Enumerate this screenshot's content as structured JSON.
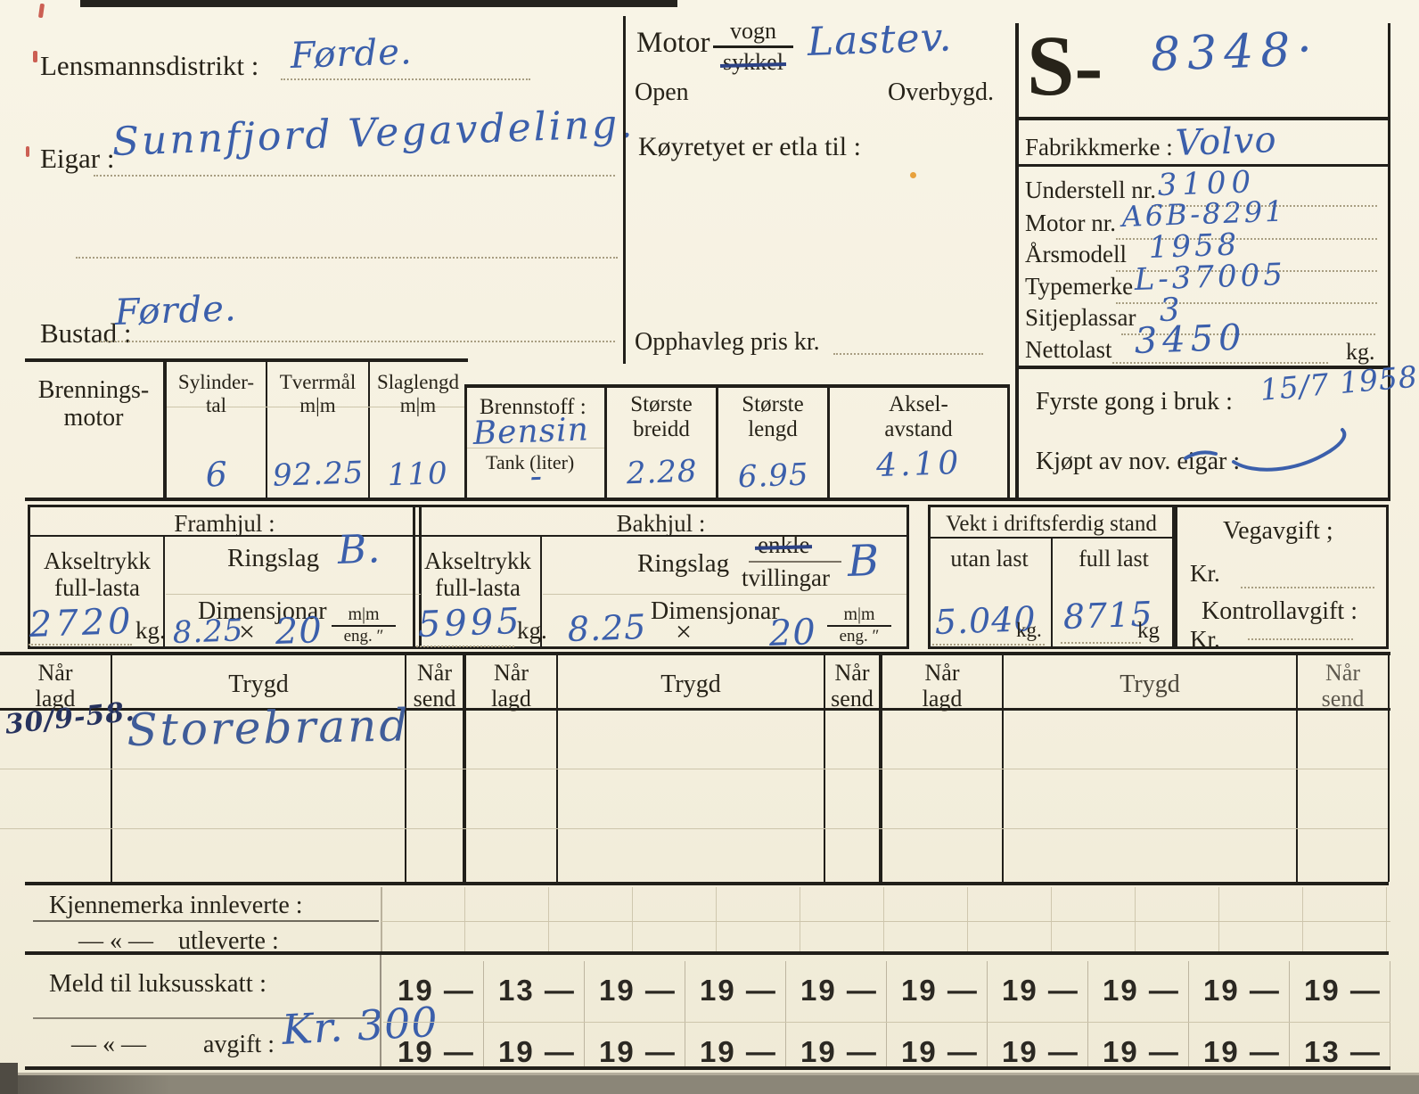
{
  "registration": {
    "district_label": "Lensmannsdistrikt :",
    "district_value": "Førde.",
    "owner_label": "Eigar :",
    "owner_value": "Sunnfjord Vegavdeling.",
    "residence_label": "Bustad :",
    "residence_value": "Førde."
  },
  "type_block": {
    "motor_label": "Motor",
    "vogn_label": "vogn",
    "sykkel_label": "sykkel",
    "vehicle_kind": "Lastev.",
    "open_label": "Open",
    "overbygd_label": "Overbygd.",
    "purpose_label": "Køyretyet er etla til :",
    "price_label": "Opphavleg pris kr."
  },
  "id_panel": {
    "series": "S-",
    "number": "8348·",
    "fabrikkmerke_label": "Fabrikkmerke :",
    "fabrikkmerke_value": "Volvo",
    "understell_label": "Understell nr.",
    "understell_value": "3100",
    "motornr_label": "Motor nr.",
    "motornr_value": "A6B-8291",
    "arsmodell_label": "Årsmodell",
    "arsmodell_value": "1958",
    "typemerke_label": "Typemerke",
    "typemerke_value": "L-37005",
    "sitjeplassar_label": "Sitjeplassar",
    "sitjeplassar_value": "3",
    "nettolast_label": "Nettolast",
    "nettolast_value": "3450",
    "nettolast_unit": "kg."
  },
  "engine": {
    "title_top": "Brennings-",
    "title_bottom": "motor",
    "syl_label_top": "Sylinder-",
    "syl_label_bottom": "tal",
    "syl_value": "6",
    "tver_label_top": "Tverrmål",
    "tver_label_bottom": "m|m",
    "tver_value": "92.25",
    "slag_label_top": "Slaglengd",
    "slag_label_bottom": "m|m",
    "slag_value": "110",
    "fuel_label": "Brennstoff :",
    "fuel_value": "Bensin",
    "tank_label": "Tank (liter)",
    "tank_value": "-",
    "breidd_label_top": "Største",
    "breidd_label_bottom": "breidd",
    "breidd_value": "2.28",
    "lengd_label_top": "Største",
    "lengd_label_bottom": "lengd",
    "lengd_value": "6.95",
    "aksel_label_top": "Aksel-",
    "aksel_label_bottom": "avstand",
    "aksel_value": "4.10",
    "first_use_label": "Fyrste gong i bruk :",
    "first_use_value": "15/7 1958",
    "bought_label": "Kjøpt av nov. eigar :"
  },
  "wheels": {
    "front_title": "Framhjul :",
    "rear_title": "Bakhjul :",
    "axle_label_top": "Akseltrykk",
    "axle_label_bottom": "full-lasta",
    "ring_label": "Ringslag",
    "dim_label": "Dimensjonar",
    "unit_top": "m|m",
    "unit_bottom": "eng. ″",
    "kg": "kg.",
    "front_axle_value": "2720",
    "front_ring_value": "B.",
    "front_dim_a": "8.25",
    "dim_x": "×",
    "front_dim_b": "20",
    "rear_axle_value": "5995",
    "enkle_label": "enkle",
    "tvillingar_label": "tvillingar",
    "rear_ring_value": "B",
    "rear_dim_a": "8.25",
    "rear_dim_b": "20"
  },
  "weight": {
    "title": "Vekt i driftsferdig stand",
    "col1": "utan last",
    "col2": "full last",
    "val1": "5.040",
    "unit1": "kg.",
    "val2": "8715",
    "unit2": "kg"
  },
  "tax": {
    "road_label": "Vegavgift ;",
    "kr": "Kr.",
    "control_label": "Kontrollavgift :"
  },
  "insurance": {
    "h_nar": "Når",
    "h_lagd": "lagd",
    "h_send": "send",
    "h_trygd": "Trygd",
    "entry_date": "30/9-58.",
    "entry_company": "Storebrand"
  },
  "plates": {
    "returned_label": "Kjennemerka innleverte :",
    "ditto": "— « —",
    "issued_label": "utleverte :"
  },
  "luxury": {
    "report_label": "Meld til luksusskatt :",
    "fee_label": "avgift :",
    "fee_value": "Kr. 300",
    "year_row1": [
      "19 —",
      "13 —",
      "19 —",
      "19 —",
      "19 —",
      "19 —",
      "19 —",
      "19 —",
      "19 —",
      "19 —"
    ],
    "year_row2": [
      "19 —",
      "19 —",
      "19 —",
      "19 —",
      "19 —",
      "19 —",
      "19 —",
      "19 —",
      "19 —",
      "13 —"
    ]
  }
}
